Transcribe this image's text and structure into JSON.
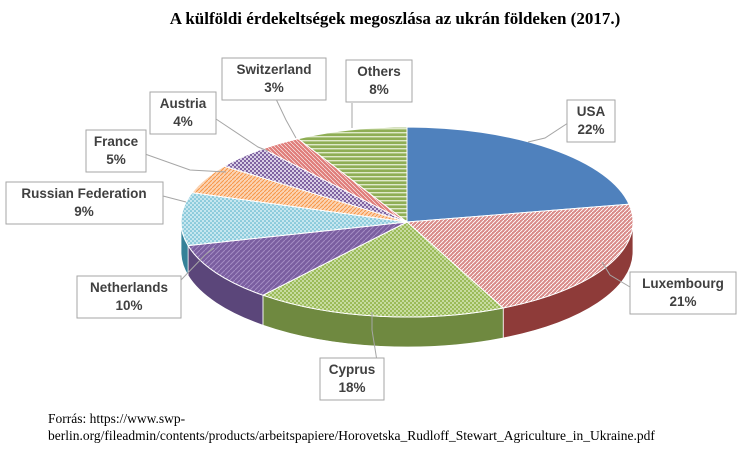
{
  "chart_data": {
    "type": "pie",
    "title": "A külföldi érdekeltségek megoszlása az ukrán földeken (2017.)",
    "slices": [
      {
        "label": "USA",
        "value": 22,
        "value_label": "22%",
        "color": "#4f81bd"
      },
      {
        "label": "Luxembourg",
        "value": 21,
        "value_label": "21%",
        "color": "#c0504d"
      },
      {
        "label": "Cyprus",
        "value": 18,
        "value_label": "18%",
        "color": "#9bbb59"
      },
      {
        "label": "Netherlands",
        "value": 10,
        "value_label": "10%",
        "color": "#8064a2"
      },
      {
        "label": "Russian Federation",
        "value": 9,
        "value_label": "9%",
        "color": "#4bacc6"
      },
      {
        "label": "France",
        "value": 5,
        "value_label": "5%",
        "color": "#f79646"
      },
      {
        "label": "Austria",
        "value": 4,
        "value_label": "4%",
        "color": "#8064a2"
      },
      {
        "label": "Switzerland",
        "value": 3,
        "value_label": "3%",
        "color": "#c0504d"
      },
      {
        "label": "Others",
        "value": 8,
        "value_label": "8%",
        "color": "#9bbb59"
      }
    ]
  },
  "source": {
    "line1": "Forrás: https://www.swp-",
    "line2": "berlin.org/fileadmin/contents/products/arbeitspapiere/Horovetska_Rudloff_Stewart_Agriculture_in_Ukraine.pdf"
  }
}
